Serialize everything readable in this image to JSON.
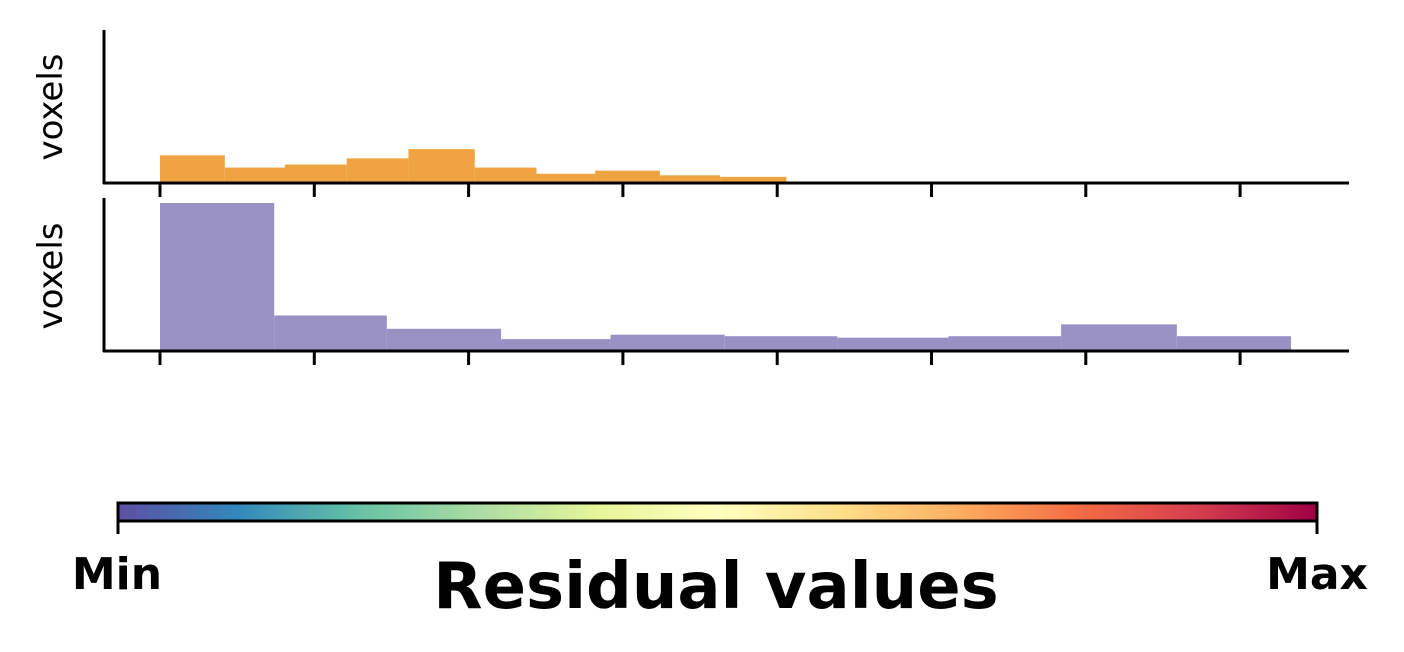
{
  "chart_data": [
    {
      "type": "bar",
      "panel": "top",
      "ylabel": "voxels",
      "color": "#EFA441",
      "xlim": [
        0,
        8
      ],
      "ylim": [
        0,
        1
      ],
      "xticks": [
        0,
        1,
        2,
        3,
        4,
        5,
        6,
        7
      ],
      "show_xtick_labels": false,
      "show_ytick_labels": false,
      "bins": [
        {
          "x0": 0.0,
          "x1": 0.42,
          "value": 0.18
        },
        {
          "x0": 0.42,
          "x1": 0.81,
          "value": 0.1
        },
        {
          "x0": 0.81,
          "x1": 1.21,
          "value": 0.12
        },
        {
          "x0": 1.21,
          "x1": 1.61,
          "value": 0.16
        },
        {
          "x0": 1.61,
          "x1": 2.04,
          "value": 0.22
        },
        {
          "x0": 2.04,
          "x1": 2.44,
          "value": 0.1
        },
        {
          "x0": 2.44,
          "x1": 2.82,
          "value": 0.06
        },
        {
          "x0": 2.82,
          "x1": 3.24,
          "value": 0.08
        },
        {
          "x0": 3.24,
          "x1": 3.63,
          "value": 0.05
        },
        {
          "x0": 3.63,
          "x1": 4.06,
          "value": 0.04
        }
      ]
    },
    {
      "type": "bar",
      "panel": "bottom",
      "ylabel": "voxels",
      "color": "#9990C4",
      "xlim": [
        0,
        8
      ],
      "ylim": [
        0,
        1
      ],
      "xticks": [
        0,
        1,
        2,
        3,
        4,
        5,
        6,
        7
      ],
      "show_xtick_labels": false,
      "show_ytick_labels": false,
      "bins": [
        {
          "x0": 0.0,
          "x1": 0.74,
          "value": 1.0
        },
        {
          "x0": 0.74,
          "x1": 1.47,
          "value": 0.24
        },
        {
          "x0": 1.47,
          "x1": 2.21,
          "value": 0.15
        },
        {
          "x0": 2.21,
          "x1": 2.92,
          "value": 0.08
        },
        {
          "x0": 2.92,
          "x1": 3.66,
          "value": 0.11
        },
        {
          "x0": 3.66,
          "x1": 4.39,
          "value": 0.1
        },
        {
          "x0": 4.39,
          "x1": 5.11,
          "value": 0.09
        },
        {
          "x0": 5.11,
          "x1": 5.84,
          "value": 0.1
        },
        {
          "x0": 5.84,
          "x1": 6.59,
          "value": 0.18
        },
        {
          "x0": 6.59,
          "x1": 7.33,
          "value": 0.1
        }
      ]
    }
  ],
  "colorbar": {
    "label": "Residual values",
    "min_label": "Min",
    "max_label": "Max",
    "colormap": "Spectral_r",
    "stops": [
      "#5E4FA2",
      "#3288BD",
      "#66C2A5",
      "#ABDDA4",
      "#E6F598",
      "#FFFFBF",
      "#FEE08B",
      "#FDAE61",
      "#F46D43",
      "#D53E4F",
      "#9E0142"
    ]
  }
}
